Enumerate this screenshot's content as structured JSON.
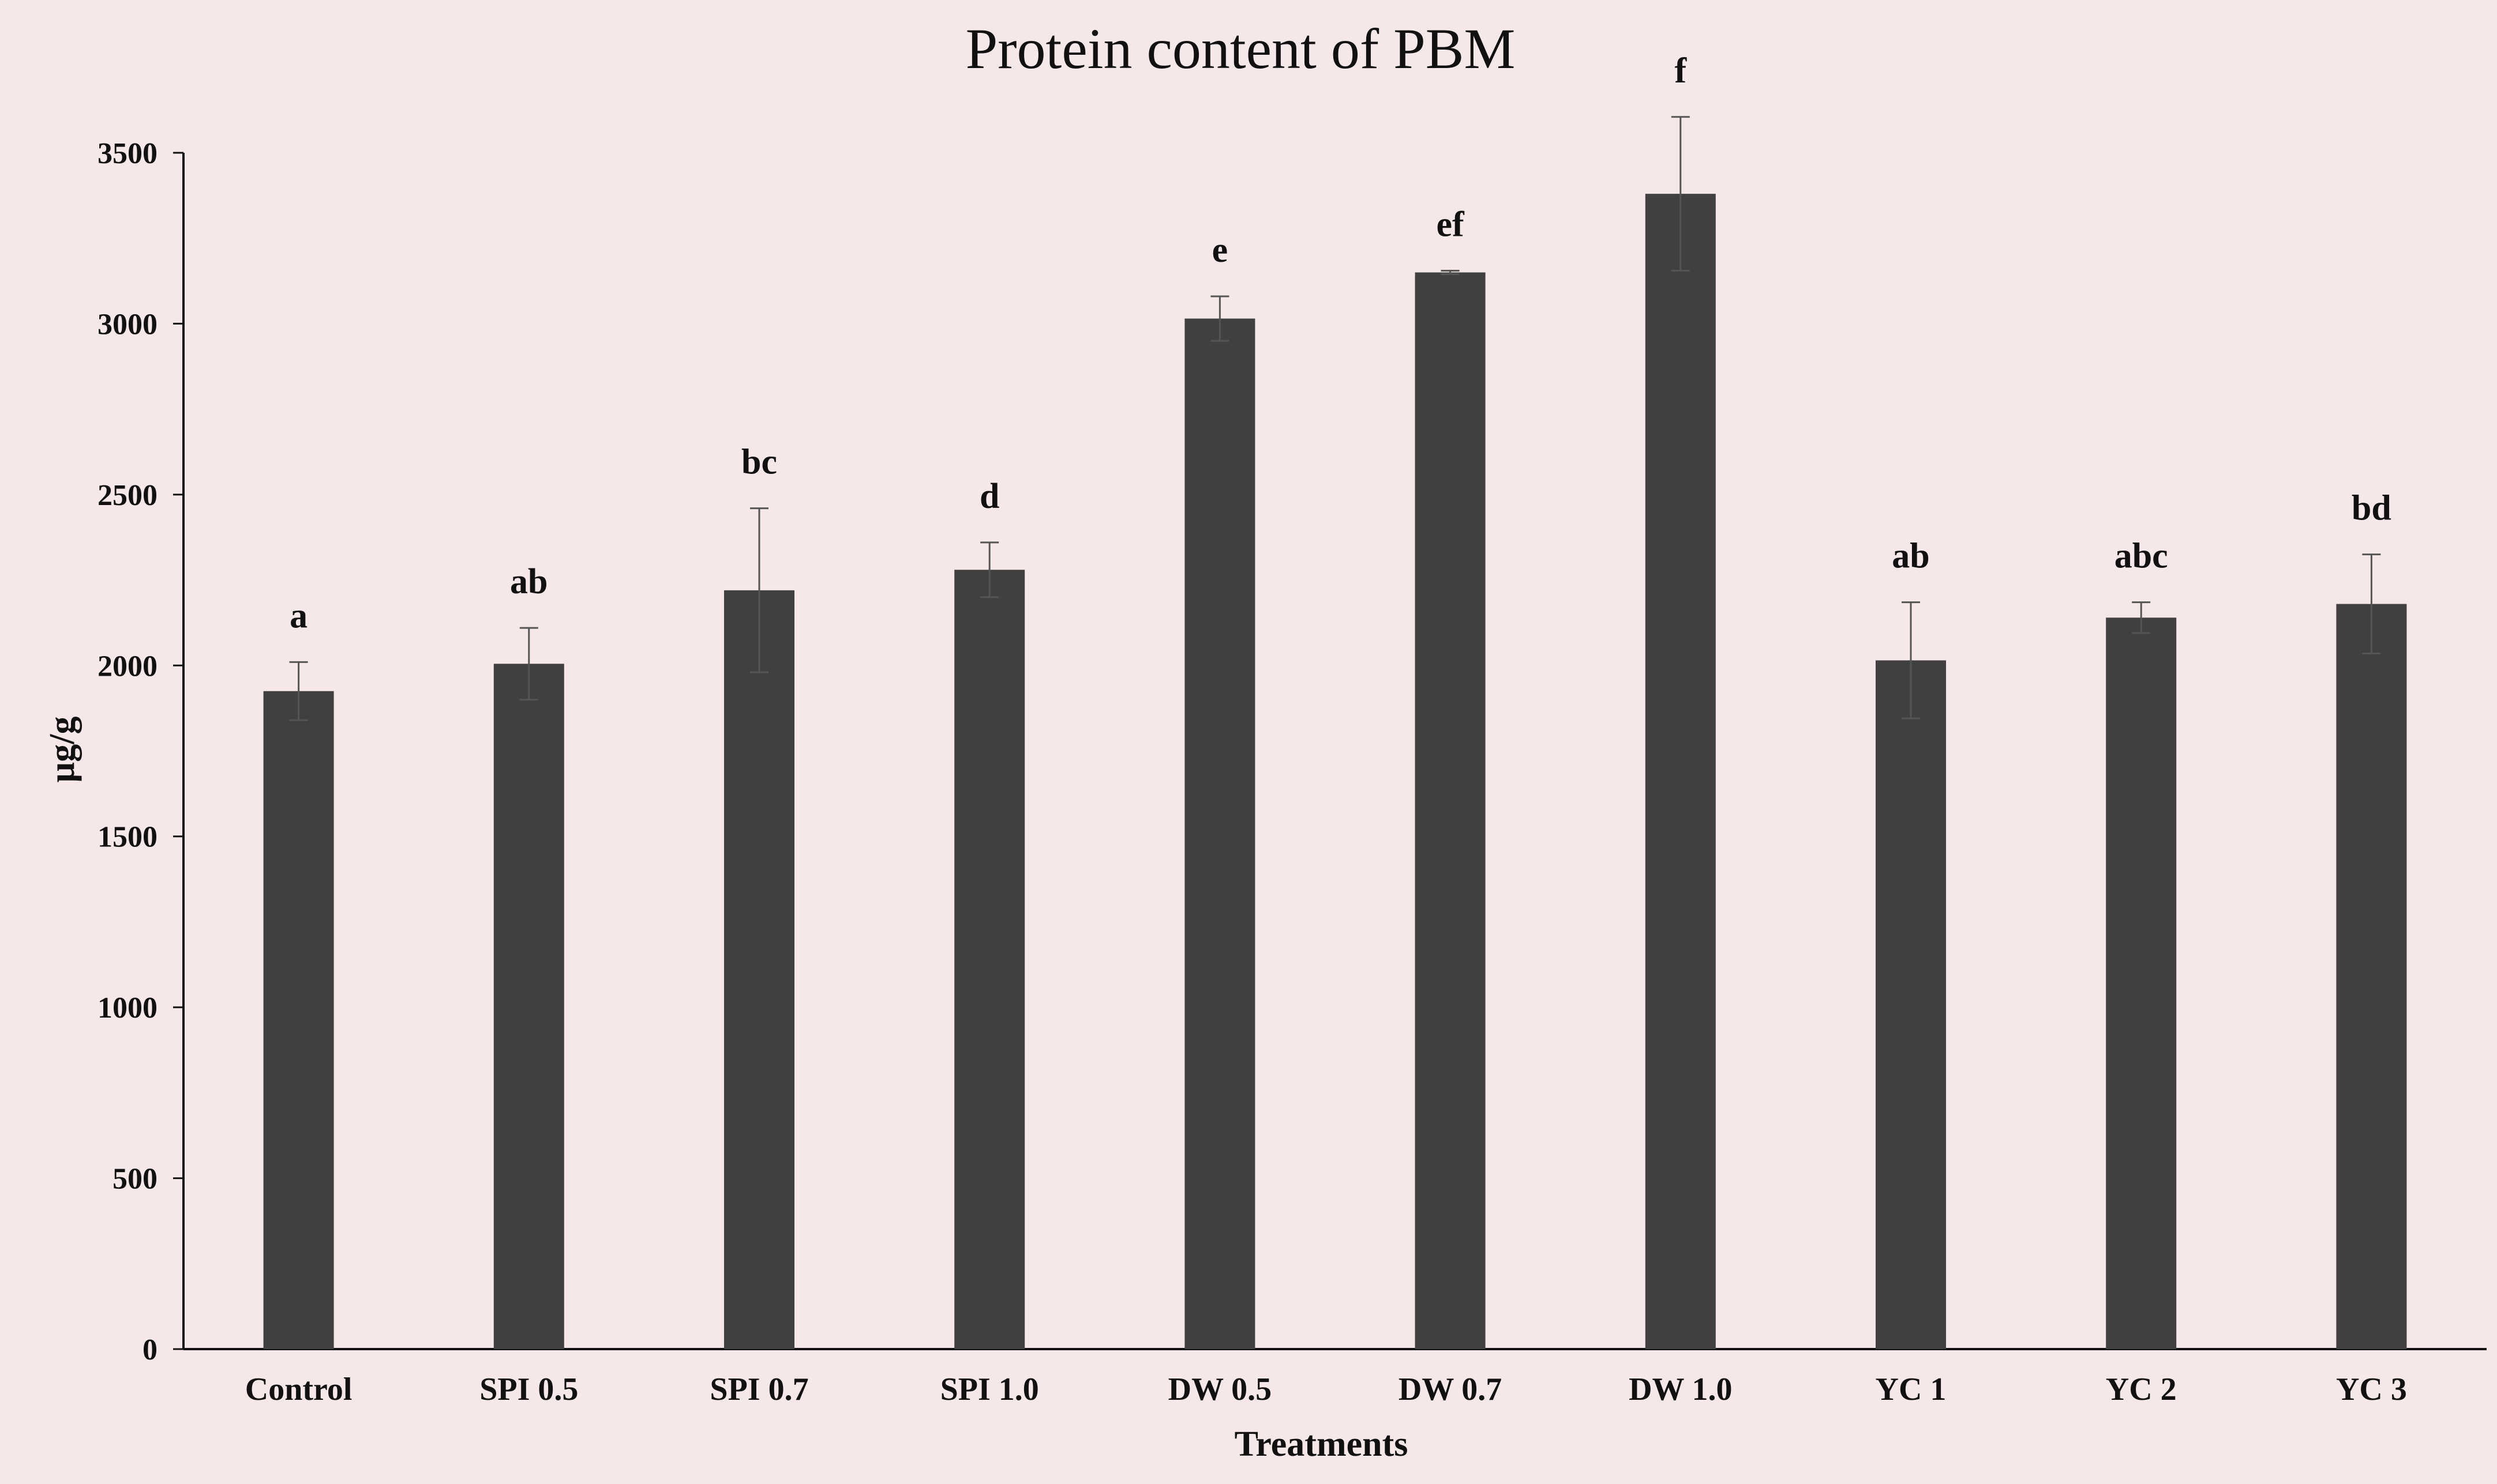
{
  "chart_data": {
    "type": "bar",
    "title": "Protein content of PBM",
    "xlabel": "Treatments",
    "ylabel": "µg/g",
    "categories": [
      "Control",
      "SPI 0.5",
      "SPI 0.7",
      "SPI 1.0",
      "DW 0.5",
      "DW 0.7",
      "DW 1.0",
      "YC 1",
      "YC 2",
      "YC 3"
    ],
    "values": [
      1925,
      2005,
      2220,
      2280,
      3015,
      3150,
      3380,
      2015,
      2140,
      2180
    ],
    "error": [
      85,
      105,
      240,
      80,
      65,
      5,
      225,
      170,
      45,
      145
    ],
    "significance": [
      "a",
      "ab",
      "bc",
      "d",
      "e",
      "ef",
      "f",
      "ab",
      "abc",
      "bd"
    ],
    "yticks": [
      0,
      500,
      1000,
      1500,
      2000,
      2500,
      3000,
      3500
    ],
    "ylim": [
      0,
      3500
    ],
    "grid": false,
    "legend": "none",
    "bar_color": "#404040",
    "background_color": "#f6e8e9"
  }
}
